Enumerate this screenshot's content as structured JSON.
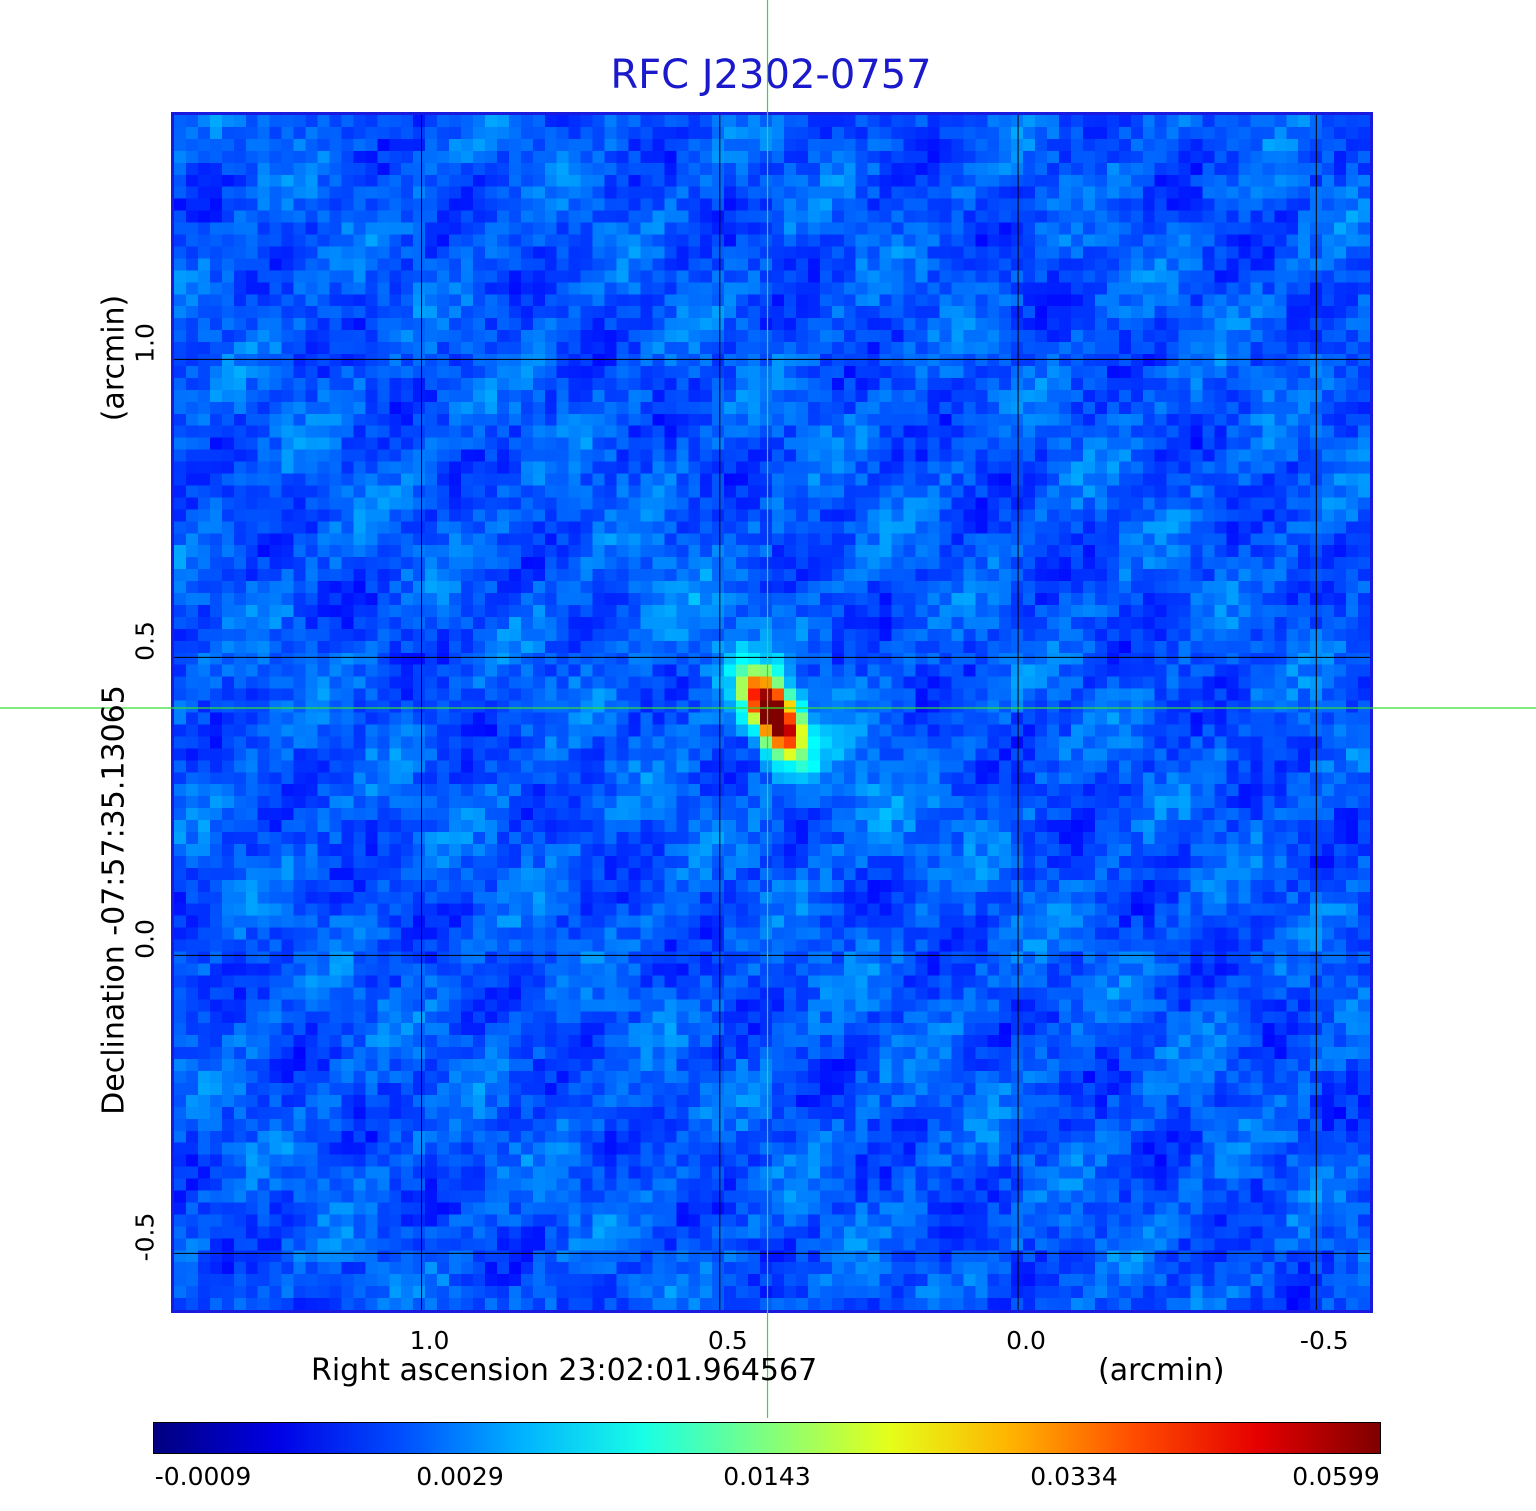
{
  "chart_data": {
    "type": "heatmap",
    "title": "RFC J2302-0757",
    "xlabel": "Right ascension  23:02:01.964567",
    "xunit": "(arcmin)",
    "ylabel": "Declination  -07:57:35.13065",
    "yunit": "(arcmin)",
    "x_ticks": [
      {
        "value": 1.0,
        "label": "1.0"
      },
      {
        "value": 0.5,
        "label": "0.5"
      },
      {
        "value": 0.0,
        "label": "0.0"
      },
      {
        "value": -0.5,
        "label": "-0.5"
      }
    ],
    "y_ticks": [
      {
        "value": 1.0,
        "label": "1.0"
      },
      {
        "value": 0.5,
        "label": "0.5"
      },
      {
        "value": 0.0,
        "label": "0.0"
      },
      {
        "value": -0.5,
        "label": "-0.5"
      }
    ],
    "xlim": [
      1.415,
      -0.59
    ],
    "ylim": [
      -0.595,
      1.41
    ],
    "grid": true,
    "crosshair": {
      "x": 0.42,
      "y": 0.415,
      "color": "#33dd33"
    },
    "source": {
      "x": 0.42,
      "y": 0.415,
      "peak": 0.0599
    },
    "colormap": "jet",
    "colorbar": {
      "tick_labels": [
        "-0.0009",
        "0.0029",
        "0.0143",
        "0.0334",
        "0.0599"
      ],
      "min": -0.0009,
      "max": 0.0599
    }
  }
}
